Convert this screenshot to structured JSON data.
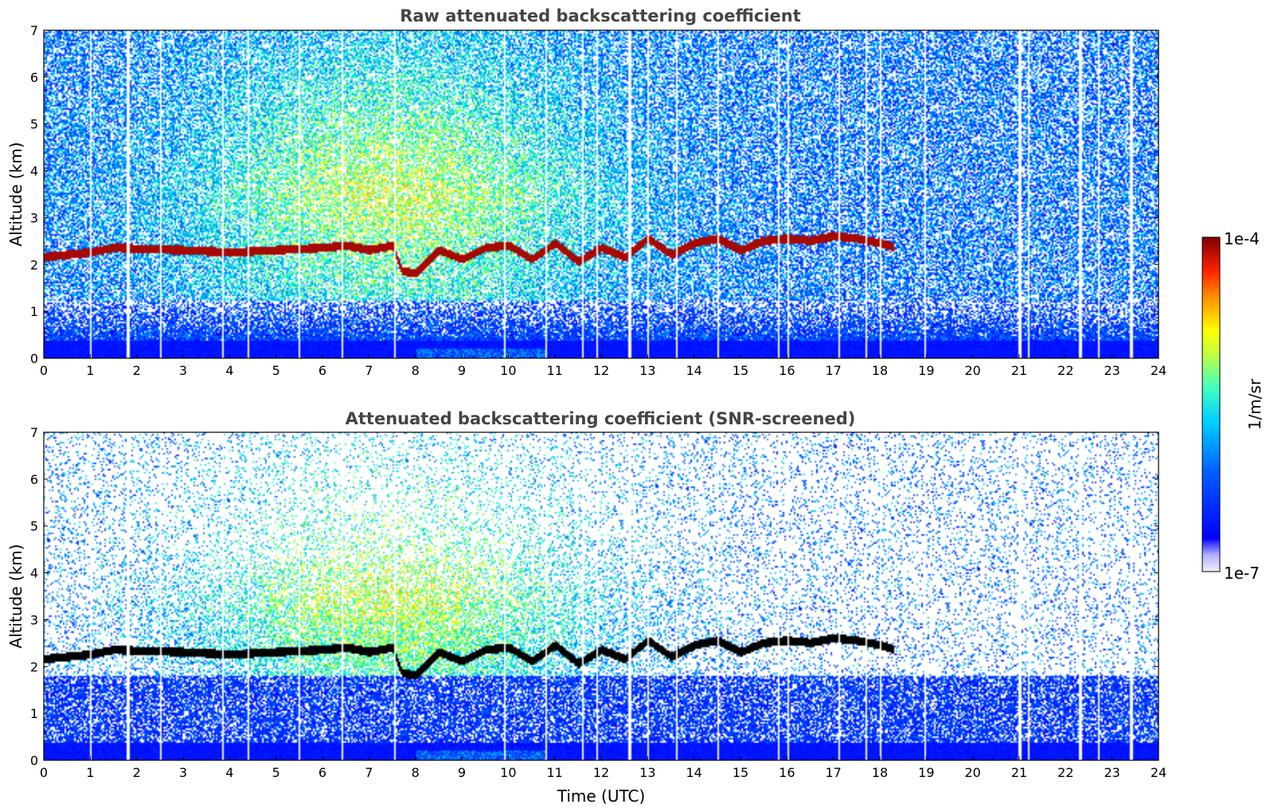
{
  "colors": {
    "jet_stops": [
      "#f0f0ff",
      "#0000ff",
      "#00a0ff",
      "#00ffff",
      "#80ff80",
      "#ffff00",
      "#ff8000",
      "#ff0000",
      "#800000"
    ],
    "layer_raw": "#a01000",
    "layer_screened": "#000000"
  },
  "chart_data": [
    {
      "type": "heatmap",
      "title": "Raw attenuated backscattering coefficient",
      "xlabel": "",
      "ylabel": "Altitude (km)",
      "xlim": [
        0,
        24
      ],
      "ylim": [
        0,
        7
      ],
      "x_ticks": [
        "0",
        "1",
        "2",
        "3",
        "4",
        "5",
        "6",
        "7",
        "8",
        "9",
        "10",
        "11",
        "12",
        "13",
        "14",
        "15",
        "16",
        "17",
        "18",
        "19",
        "20",
        "21",
        "22",
        "23",
        "24"
      ],
      "y_ticks": [
        "0",
        "1",
        "2",
        "3",
        "4",
        "5",
        "6",
        "7"
      ],
      "aerosol_layer_top_km": {
        "time_utc": [
          0,
          0.5,
          1,
          1.5,
          2,
          3,
          4,
          5,
          6,
          6.5,
          7,
          7.5,
          7.7,
          8,
          8.5,
          9,
          9.5,
          10,
          10.5,
          11,
          11.5,
          12,
          12.5,
          13,
          13.5,
          14,
          14.5,
          15,
          15.5,
          16,
          16.5,
          17,
          17.5,
          18,
          18.3
        ],
        "altitude_km": [
          2.15,
          2.2,
          2.25,
          2.35,
          2.33,
          2.3,
          2.25,
          2.3,
          2.35,
          2.4,
          2.3,
          2.4,
          1.85,
          1.8,
          2.3,
          2.1,
          2.35,
          2.4,
          2.1,
          2.45,
          2.05,
          2.35,
          2.15,
          2.55,
          2.2,
          2.45,
          2.55,
          2.3,
          2.5,
          2.55,
          2.5,
          2.6,
          2.55,
          2.45,
          2.35
        ]
      }
    },
    {
      "type": "heatmap",
      "title": "Attenuated backscattering coefficient (SNR-screened)",
      "xlabel": "Time (UTC)",
      "ylabel": "Altitude (km)",
      "xlim": [
        0,
        24
      ],
      "ylim": [
        0,
        7
      ],
      "x_ticks": [
        "0",
        "1",
        "2",
        "3",
        "4",
        "5",
        "6",
        "7",
        "8",
        "9",
        "10",
        "11",
        "12",
        "13",
        "14",
        "15",
        "16",
        "17",
        "18",
        "19",
        "20",
        "21",
        "22",
        "23",
        "24"
      ],
      "y_ticks": [
        "0",
        "1",
        "2",
        "3",
        "4",
        "5",
        "6",
        "7"
      ]
    }
  ],
  "colorbar": {
    "label": "1/m/sr",
    "max_label": "1e-4",
    "min_label": "1e-7",
    "scale": "log"
  }
}
